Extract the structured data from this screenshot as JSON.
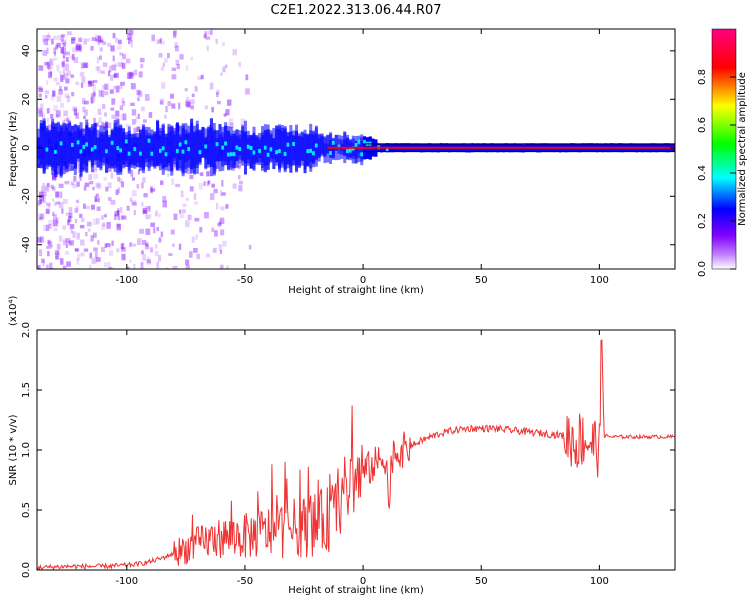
{
  "figure": {
    "title": "C2E1.2022.313.06.44.R07"
  },
  "colorbar": {
    "label": "Normalized spectral amplitude",
    "ticks": [
      "0.0",
      "0.2",
      "0.4",
      "0.6",
      "0.8"
    ],
    "colors": [
      "#ffffff",
      "#8000ff",
      "#0000ff",
      "#00ffff",
      "#00ff00",
      "#ffff00",
      "#ff0000",
      "#ff0080"
    ]
  },
  "chart_data": [
    {
      "type": "heatmap",
      "xlabel": "Height of straight line (km)",
      "ylabel": "Frequency (Hz)",
      "xlim": [
        -138,
        132
      ],
      "ylim": [
        -50,
        49
      ],
      "xticks": [
        -100,
        -50,
        0,
        50,
        100
      ],
      "yticks": [
        -40,
        -20,
        0,
        20,
        40
      ],
      "zrange": [
        0,
        1
      ],
      "band_center_hz": 0,
      "colors": {
        "sparse": "#8000ff",
        "band": "#0000ff",
        "core": "#00ffff",
        "line": "#ff0000"
      }
    },
    {
      "type": "line",
      "xlabel": "Height of straight line (km)",
      "ylabel": "SNR (10 * v/v)",
      "yscale_label": "(x10⁴)",
      "xlim": [
        -138,
        132
      ],
      "ylim": [
        0,
        2.0
      ],
      "xticks": [
        -100,
        -50,
        0,
        50,
        100
      ],
      "yticks": [
        "0.0",
        "0.5",
        "1.0",
        "1.5",
        "2.0"
      ],
      "color": "#ee3333",
      "series": [
        {
          "x": [
            -138,
            -125,
            -110,
            -100,
            -95,
            -90,
            -85,
            -80,
            -75,
            -70,
            -65,
            -60,
            -55,
            -50,
            -45,
            -40,
            -35,
            -30,
            -25,
            -20,
            -15,
            -12,
            -10,
            -8,
            -5,
            -2,
            0,
            3,
            5,
            8,
            10,
            11,
            12,
            14,
            17,
            20,
            25,
            30,
            35,
            40,
            45,
            50,
            55,
            60,
            65,
            70,
            75,
            80,
            85,
            88,
            90,
            92,
            95,
            98,
            100,
            101,
            102,
            105,
            110,
            120,
            132
          ],
          "y": [
            0.02,
            0.03,
            0.03,
            0.04,
            0.05,
            0.07,
            0.1,
            0.14,
            0.18,
            0.22,
            0.25,
            0.27,
            0.28,
            0.28,
            0.3,
            0.32,
            0.33,
            0.35,
            0.36,
            0.38,
            0.42,
            0.48,
            0.56,
            0.65,
            0.72,
            0.78,
            0.82,
            0.85,
            0.88,
            0.92,
            0.95,
            0.4,
            0.95,
            0.98,
            1.0,
            1.03,
            1.08,
            1.12,
            1.15,
            1.17,
            1.18,
            1.18,
            1.18,
            1.17,
            1.16,
            1.15,
            1.14,
            1.13,
            1.12,
            1.1,
            1.05,
            1.1,
            1.08,
            1.05,
            1.0,
            1.95,
            1.12,
            1.11,
            1.11,
            1.11,
            1.11
          ]
        }
      ]
    }
  ]
}
